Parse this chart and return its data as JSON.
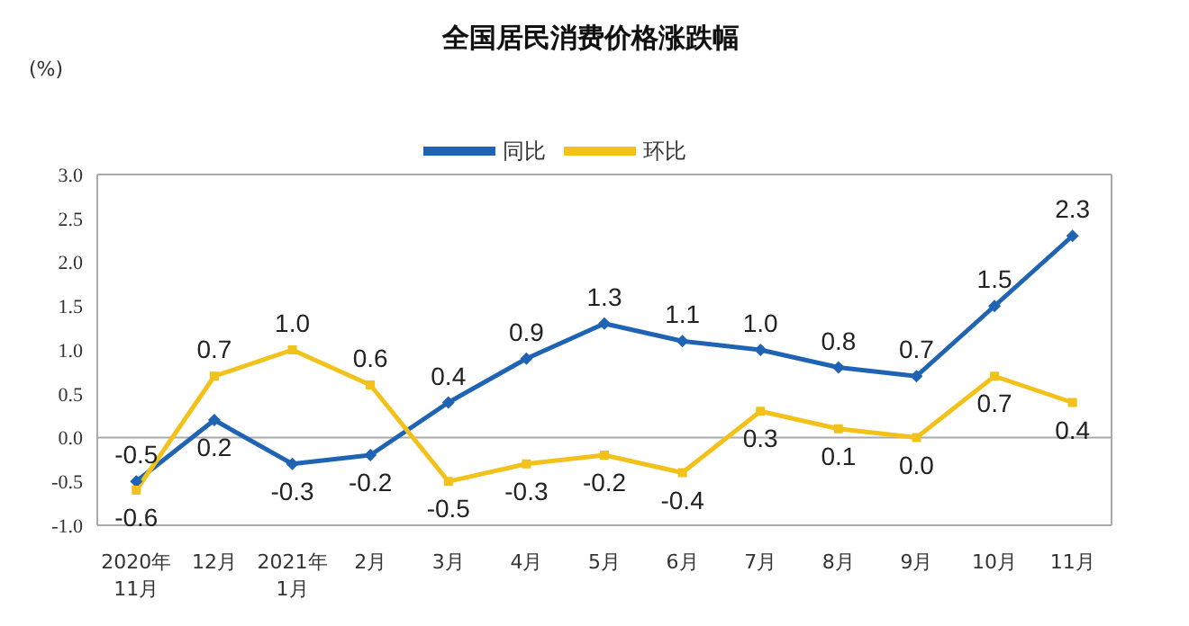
{
  "chart_data": {
    "type": "line",
    "title": "全国居民消费价格涨跌幅",
    "ylabel": "(%)",
    "categories": [
      "2020年\n11月",
      "12月",
      "2021年\n1月",
      "2月",
      "3月",
      "4月",
      "5月",
      "6月",
      "7月",
      "8月",
      "9月",
      "10月",
      "11月"
    ],
    "series": [
      {
        "name": "同比",
        "color": "#1f64b4",
        "marker": "diamond",
        "values": [
          -0.5,
          0.2,
          -0.3,
          -0.2,
          0.4,
          0.9,
          1.3,
          1.1,
          1.0,
          0.8,
          0.7,
          1.5,
          2.3
        ],
        "value_labels": [
          "-0.5",
          "0.2",
          "-0.3",
          "-0.2",
          "0.4",
          "0.9",
          "1.3",
          "1.1",
          "1.0",
          "0.8",
          "0.7",
          "1.5",
          "2.3"
        ]
      },
      {
        "name": "环比",
        "color": "#f2c21b",
        "marker": "square",
        "values": [
          -0.6,
          0.7,
          1.0,
          0.6,
          -0.5,
          -0.3,
          -0.2,
          -0.4,
          0.3,
          0.1,
          0.0,
          0.7,
          0.4
        ],
        "value_labels": [
          "-0.6",
          "0.7",
          "1.0",
          "0.6",
          "-0.5",
          "-0.3",
          "-0.2",
          "-0.4",
          "0.3",
          "0.1",
          "0.0",
          "0.7",
          "0.4"
        ]
      }
    ],
    "ylim": [
      -1,
      3
    ],
    "yticks": [
      {
        "value": -1,
        "label": "-1.0"
      },
      {
        "value": -0.5,
        "label": "-0.5"
      },
      {
        "value": 0,
        "label": "0.0"
      },
      {
        "value": 0.5,
        "label": "0.5"
      },
      {
        "value": 1,
        "label": "1.0"
      },
      {
        "value": 1.5,
        "label": "1.5"
      },
      {
        "value": 2,
        "label": "2.0"
      },
      {
        "value": 2.5,
        "label": "2.5"
      },
      {
        "value": 3,
        "label": "3.0"
      }
    ],
    "ref_lines": [
      {
        "axis": "y",
        "value": 0,
        "color": "#aaaaaa"
      }
    ],
    "legend": "top",
    "line_style": "solid"
  }
}
